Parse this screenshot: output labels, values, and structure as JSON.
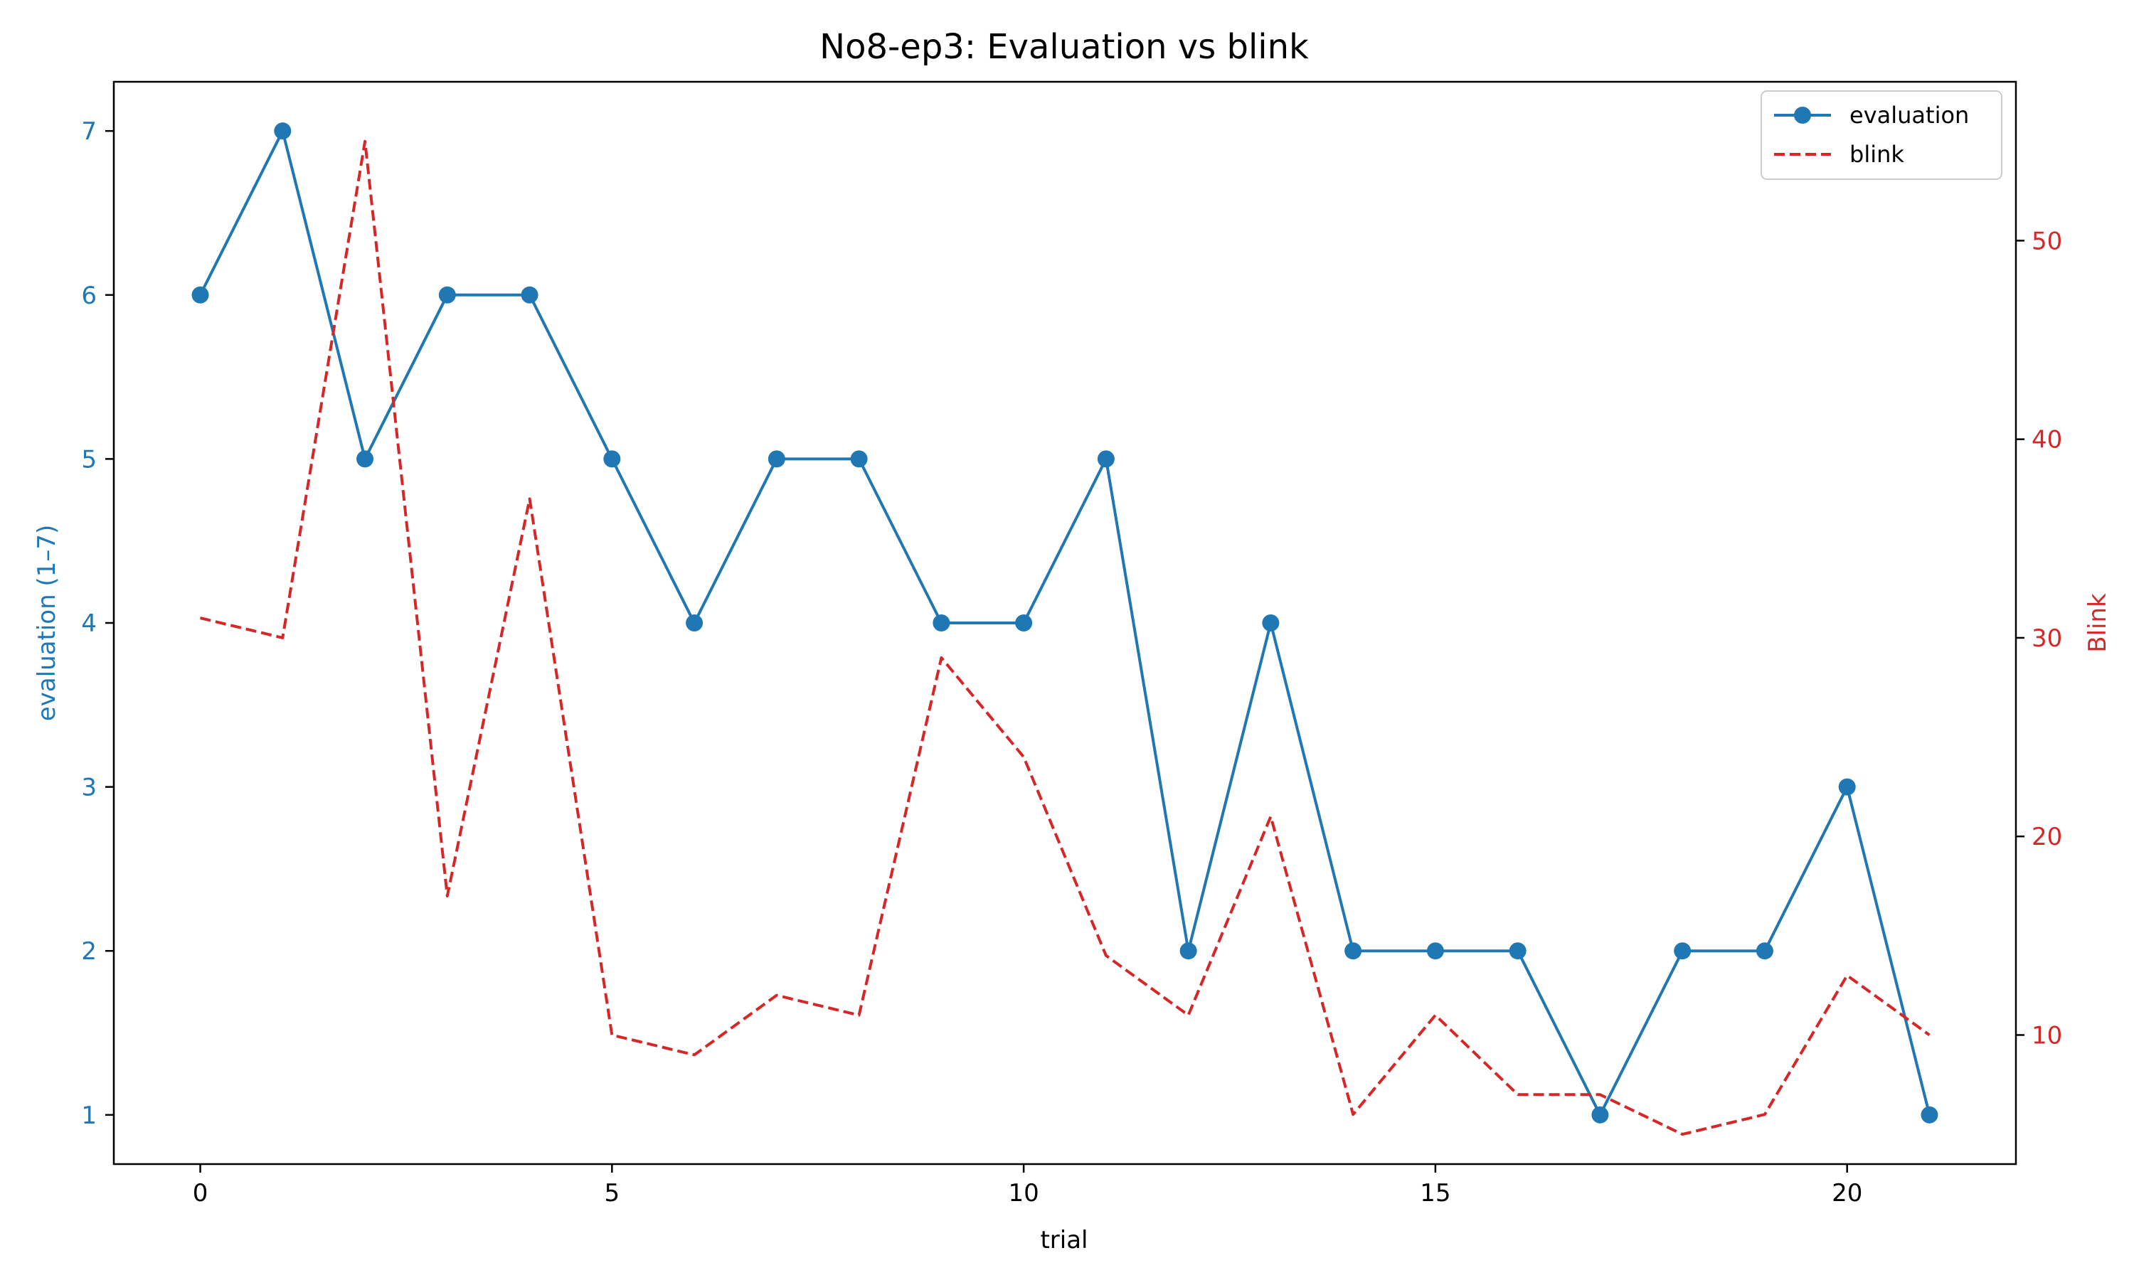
{
  "chart_data": {
    "type": "line",
    "title": "No8-ep3: Evaluation vs blink",
    "xlabel": "trial",
    "ylabel_left": "evaluation (1–7)",
    "ylabel_right": "Blink",
    "xlim": [
      -1.05,
      22.05
    ],
    "ylim_left": [
      0.7,
      7.3
    ],
    "ylim_right": [
      3.5,
      58.0
    ],
    "x_ticks": [
      0,
      5,
      10,
      15,
      20
    ],
    "y_left_ticks": [
      1,
      2,
      3,
      4,
      5,
      6,
      7
    ],
    "y_right_ticks": [
      10,
      20,
      30,
      40,
      50
    ],
    "grid": false,
    "legend_position": "top-right",
    "x": [
      0,
      1,
      2,
      3,
      4,
      5,
      6,
      7,
      8,
      9,
      10,
      11,
      12,
      13,
      14,
      15,
      16,
      17,
      18,
      19,
      20,
      21
    ],
    "series": [
      {
        "name": "evaluation",
        "axis": "left",
        "style": "solid-marker",
        "color": "#1f77b4",
        "values": [
          6,
          7,
          5,
          6,
          6,
          5,
          4,
          5,
          5,
          4,
          4,
          5,
          2,
          4,
          2,
          2,
          2,
          1,
          2,
          2,
          3,
          1
        ]
      },
      {
        "name": "blink",
        "axis": "right",
        "style": "dashed",
        "color": "#d62728",
        "values": [
          31,
          30,
          55,
          17,
          37,
          10,
          9,
          12,
          11,
          29,
          24,
          14,
          11,
          21,
          6,
          11,
          7,
          7,
          5,
          6,
          13,
          10
        ]
      }
    ]
  }
}
